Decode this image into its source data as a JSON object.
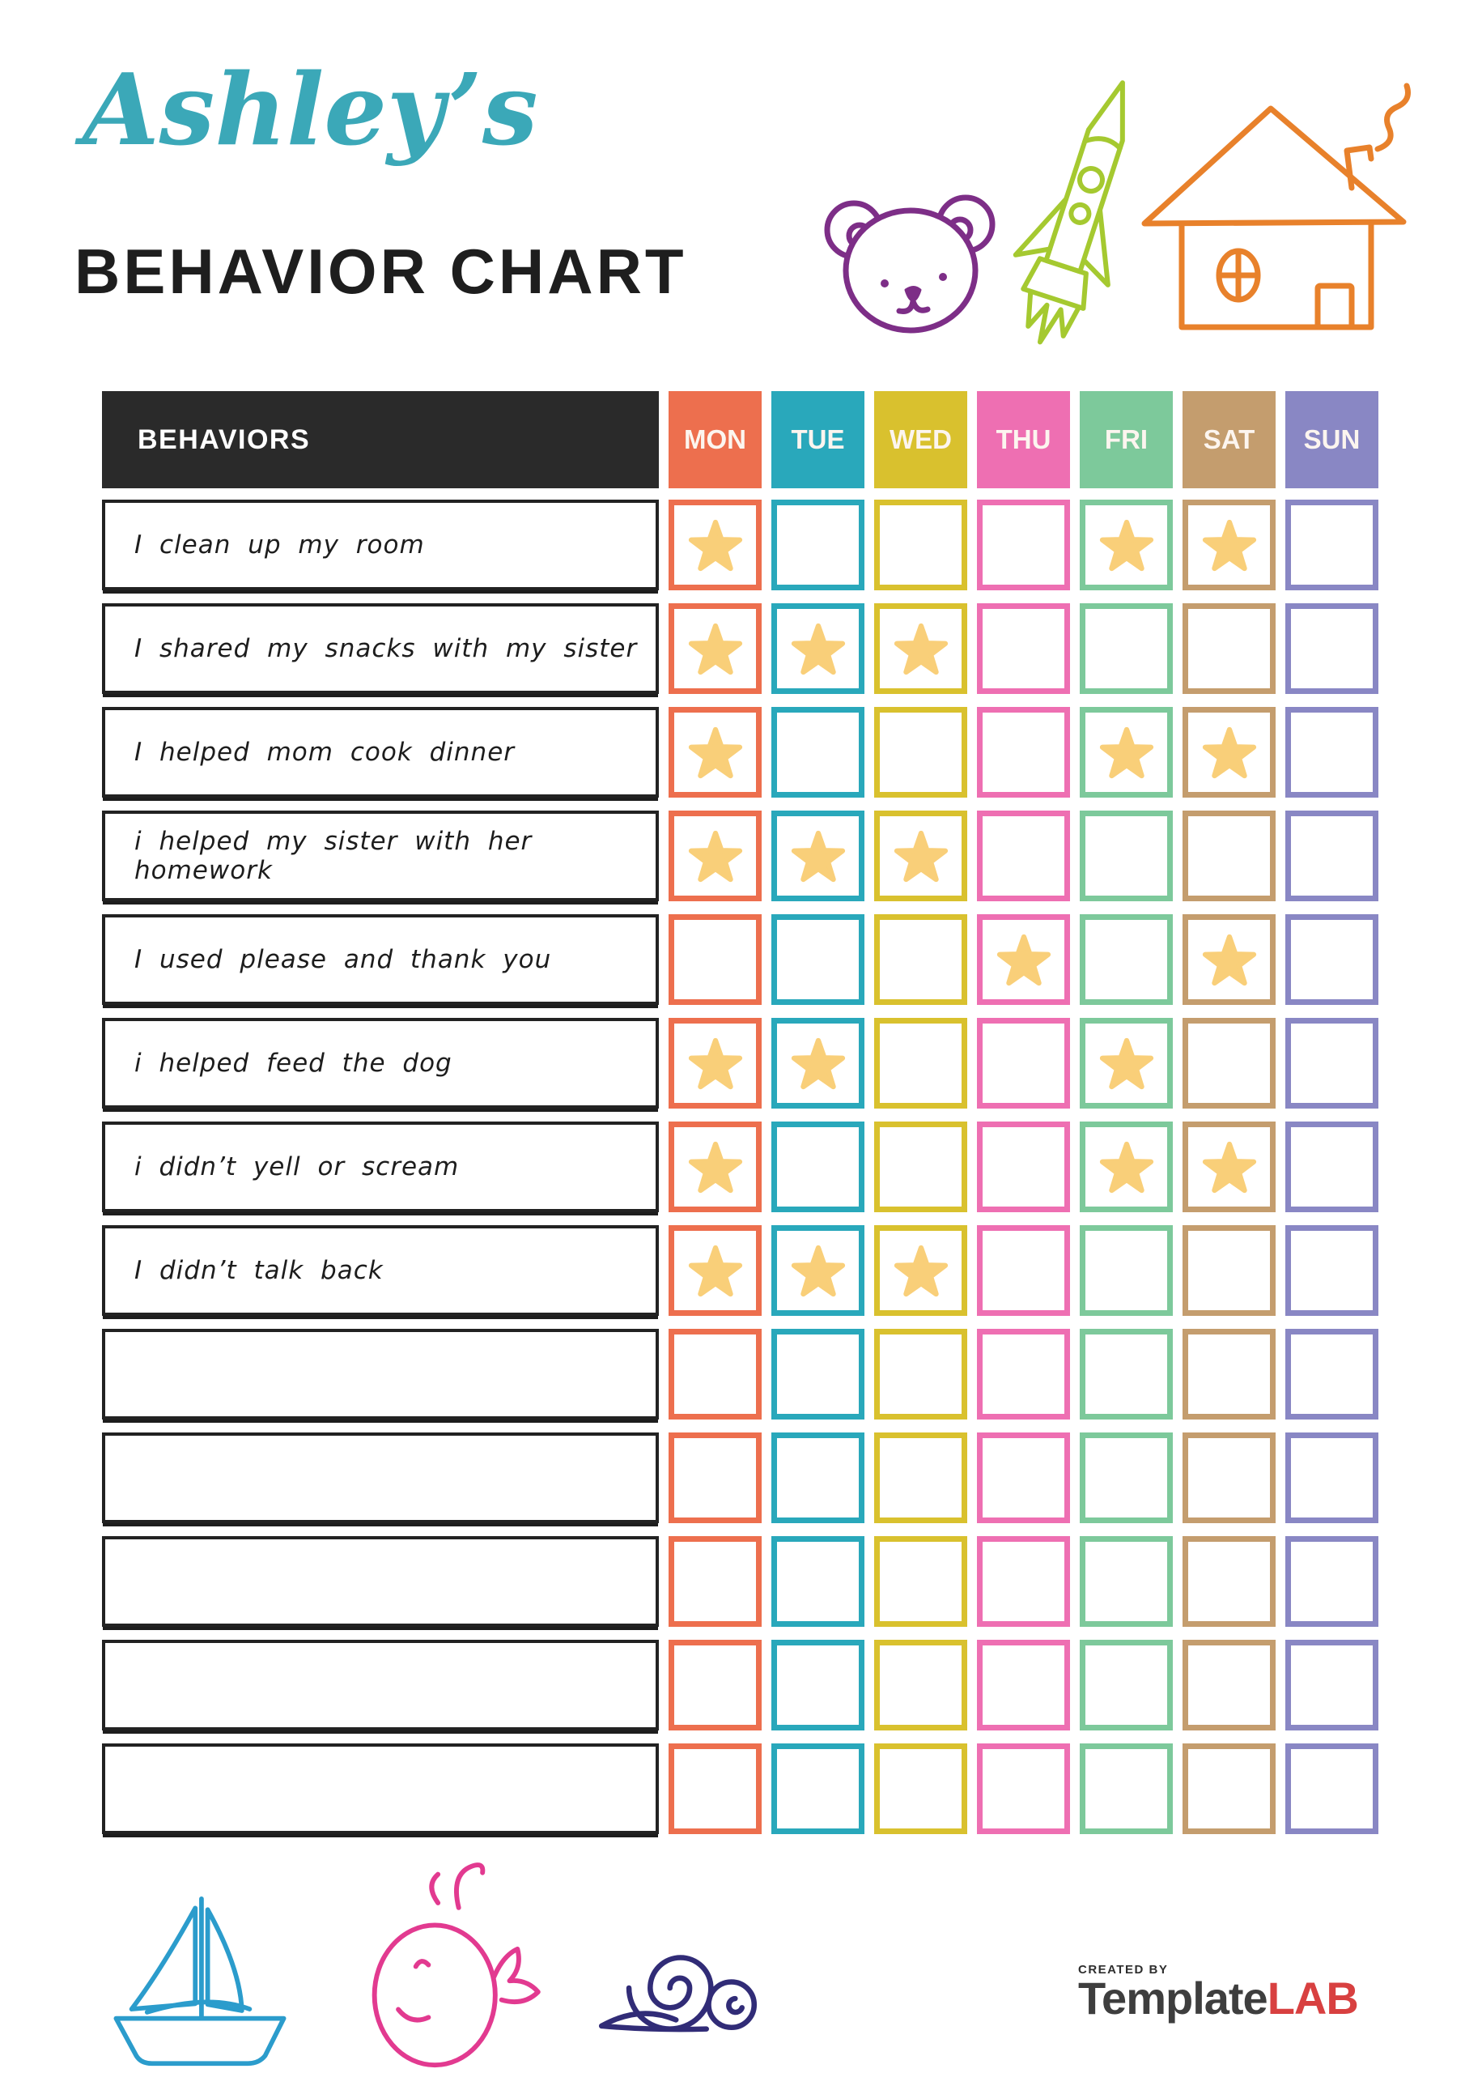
{
  "header": {
    "name": "Ashley’s",
    "title": "BEHAVIOR CHART",
    "name_color": "#3BA8B8"
  },
  "decorations": {
    "top": [
      {
        "icon": "bear-icon",
        "color": "#7D2E87"
      },
      {
        "icon": "rocket-icon",
        "color": "#A5C930"
      },
      {
        "icon": "house-icon",
        "color": "#E8812B"
      }
    ],
    "bottom": [
      {
        "icon": "sailboat-icon",
        "color": "#2B9CCC"
      },
      {
        "icon": "whale-icon",
        "color": "#E23A90"
      },
      {
        "icon": "snail-icon",
        "color": "#312C77"
      }
    ]
  },
  "table": {
    "behaviors_header": "BEHAVIORS",
    "header_bg": "#2A2A2A",
    "star_color": "#F9CF79",
    "days": [
      {
        "label": "MON",
        "color": "#ED6F4E"
      },
      {
        "label": "TUE",
        "color": "#29A8BB"
      },
      {
        "label": "WED",
        "color": "#D9C12E"
      },
      {
        "label": "THU",
        "color": "#EE6FB2"
      },
      {
        "label": "FRI",
        "color": "#7DC99B"
      },
      {
        "label": "SAT",
        "color": "#C49D6E"
      },
      {
        "label": "SUN",
        "color": "#8987C4"
      }
    ],
    "rows": [
      {
        "behavior": "I clean up my room",
        "stars": [
          1,
          0,
          0,
          0,
          1,
          1,
          0
        ]
      },
      {
        "behavior": "I shared my snacks with my sister",
        "stars": [
          1,
          1,
          1,
          0,
          0,
          0,
          0
        ]
      },
      {
        "behavior": "I helped mom cook dinner",
        "stars": [
          1,
          0,
          0,
          0,
          1,
          1,
          0
        ]
      },
      {
        "behavior": "i helped my sister with her homework",
        "stars": [
          1,
          1,
          1,
          0,
          0,
          0,
          0
        ]
      },
      {
        "behavior": "I used please and thank you",
        "stars": [
          0,
          0,
          0,
          1,
          0,
          1,
          0
        ]
      },
      {
        "behavior": "i helped feed the dog",
        "stars": [
          1,
          1,
          0,
          0,
          1,
          0,
          0
        ]
      },
      {
        "behavior": "i didn’t yell or scream",
        "stars": [
          1,
          0,
          0,
          0,
          1,
          1,
          0
        ]
      },
      {
        "behavior": "I didn’t talk back",
        "stars": [
          1,
          1,
          1,
          0,
          0,
          0,
          0
        ]
      },
      {
        "behavior": "",
        "stars": [
          0,
          0,
          0,
          0,
          0,
          0,
          0
        ]
      },
      {
        "behavior": "",
        "stars": [
          0,
          0,
          0,
          0,
          0,
          0,
          0
        ]
      },
      {
        "behavior": "",
        "stars": [
          0,
          0,
          0,
          0,
          0,
          0,
          0
        ]
      },
      {
        "behavior": "",
        "stars": [
          0,
          0,
          0,
          0,
          0,
          0,
          0
        ]
      },
      {
        "behavior": "",
        "stars": [
          0,
          0,
          0,
          0,
          0,
          0,
          0
        ]
      }
    ]
  },
  "footer": {
    "created_by": "CREATED BY",
    "brand_name": "Template",
    "brand_suffix": "LAB",
    "brand_suffix_color": "#D84040"
  }
}
